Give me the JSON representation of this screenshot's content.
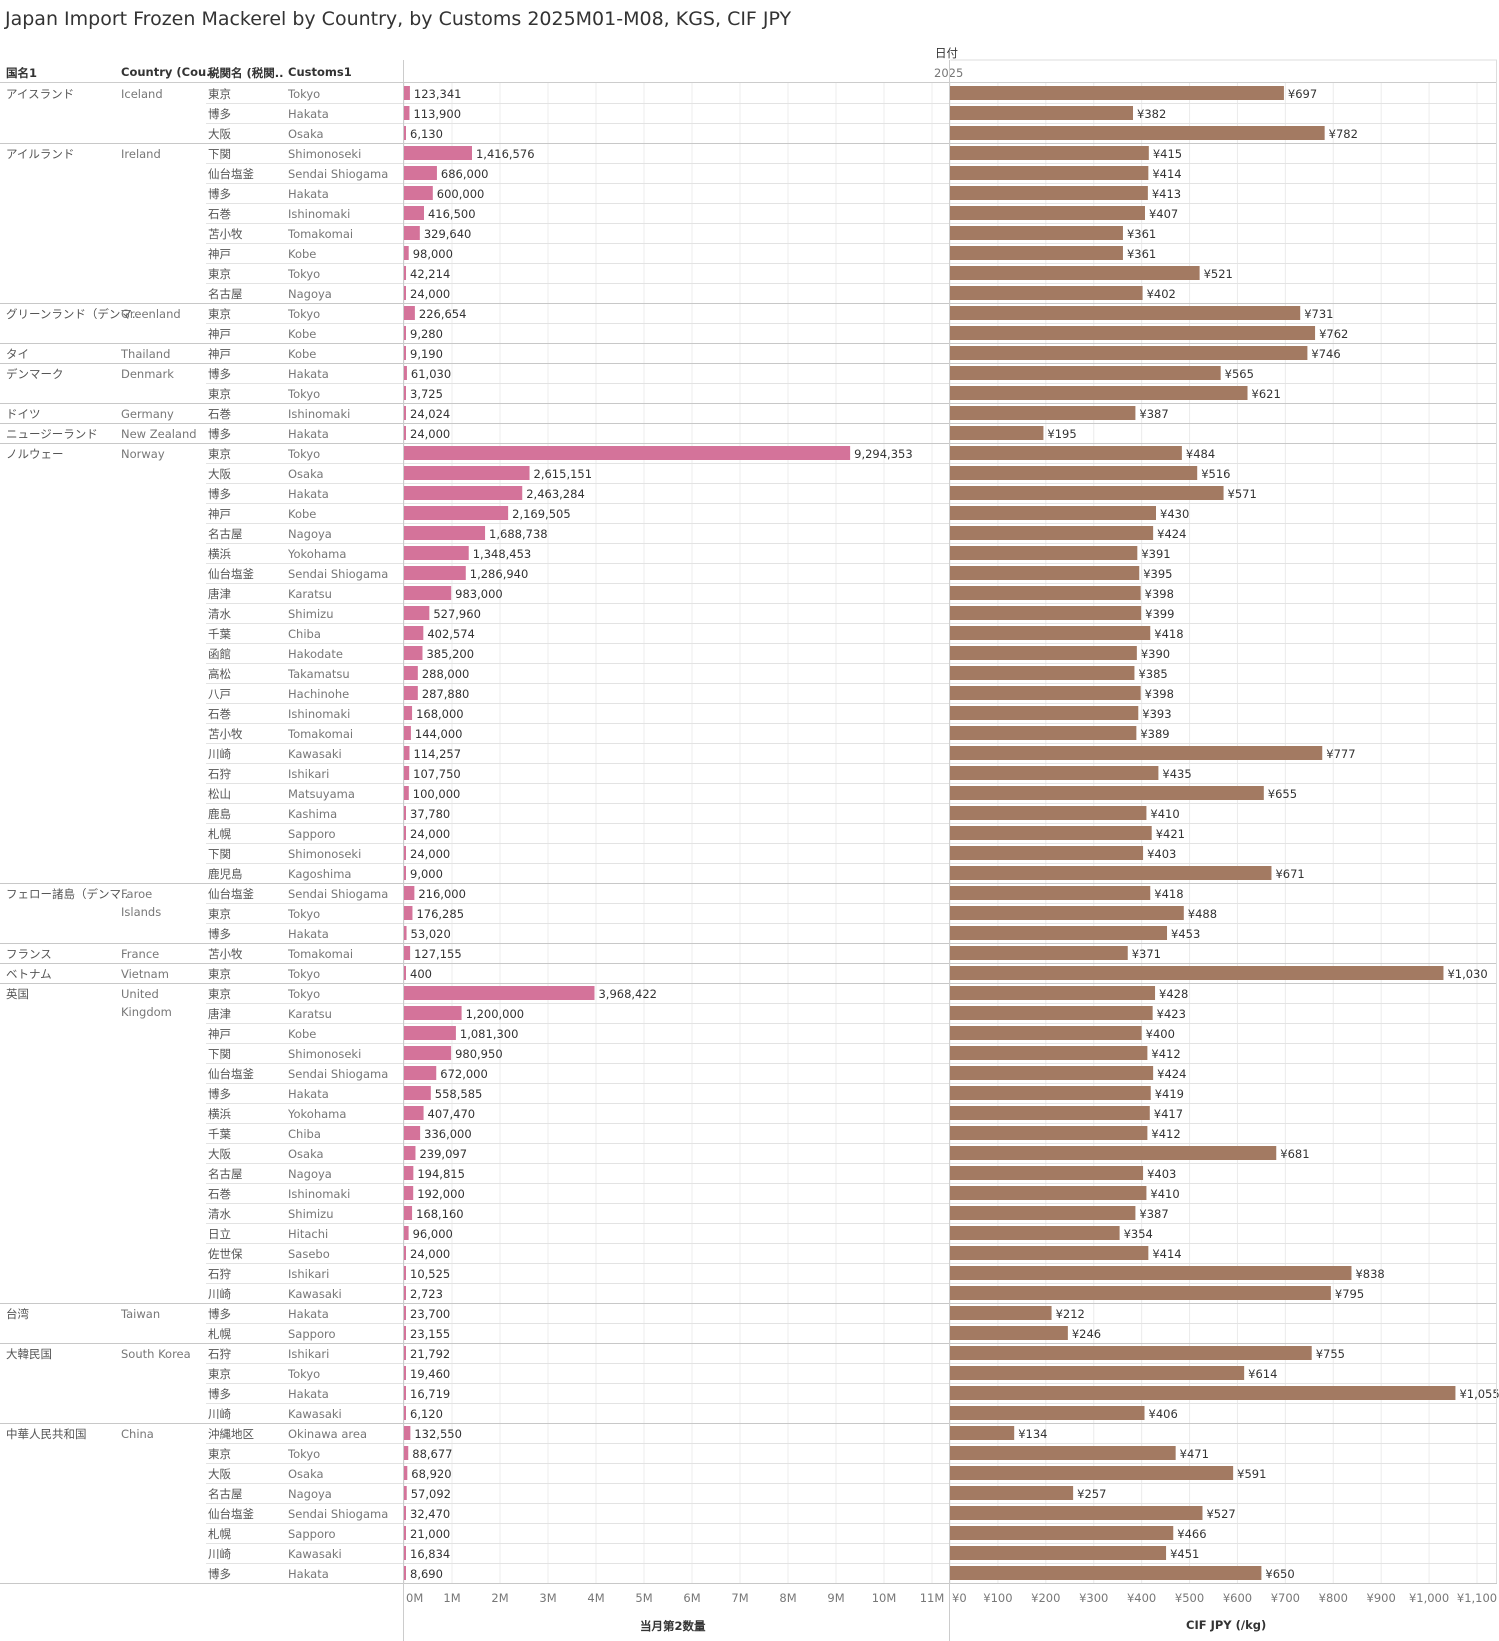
{
  "title": "Japan Import Frozen Mackerel by Country, by Customs 2025M01-M08, KGS, CIF JPY",
  "headers": {
    "col1": "国名1",
    "col2": "Country (Cou..",
    "col3": "税関名 (税関..",
    "col4": "Customs1"
  },
  "column_group": {
    "title": "日付",
    "year": "2025"
  },
  "chart_data": {
    "type": "table",
    "measures": [
      {
        "name": "当月第2数量",
        "axis_ticks": [
          "0M",
          "1M",
          "2M",
          "3M",
          "4M",
          "5M",
          "6M",
          "7M",
          "8M",
          "9M",
          "10M",
          "11M"
        ],
        "axis_max": 11000000,
        "color": "#d4739a"
      },
      {
        "name": "CIF JPY (/kg)",
        "axis_ticks": [
          "¥0",
          "¥100",
          "¥200",
          "¥300",
          "¥400",
          "¥500",
          "¥600",
          "¥700",
          "¥800",
          "¥900",
          "¥1,000",
          "¥1,100"
        ],
        "axis_max": 1100,
        "color": "#a37a62"
      }
    ],
    "groups": [
      {
        "country_jp": "アイスランド",
        "country_en": "Iceland",
        "rows": [
          [
            "東京",
            "Tokyo",
            123341,
            "123,341",
            697
          ],
          [
            "博多",
            "Hakata",
            113900,
            "113,900",
            382
          ],
          [
            "大阪",
            "Osaka",
            6130,
            "6,130",
            782
          ]
        ]
      },
      {
        "country_jp": "アイルランド",
        "country_en": "Ireland",
        "rows": [
          [
            "下関",
            "Shimonoseki",
            1416576,
            "1,416,576",
            415
          ],
          [
            "仙台塩釜",
            "Sendai Shiogama",
            686000,
            "686,000",
            414
          ],
          [
            "博多",
            "Hakata",
            600000,
            "600,000",
            413
          ],
          [
            "石巻",
            "Ishinomaki",
            416500,
            "416,500",
            407
          ],
          [
            "苫小牧",
            "Tomakomai",
            329640,
            "329,640",
            361
          ],
          [
            "神戸",
            "Kobe",
            98000,
            "98,000",
            361
          ],
          [
            "東京",
            "Tokyo",
            42214,
            "42,214",
            521
          ],
          [
            "名古屋",
            "Nagoya",
            24000,
            "24,000",
            402
          ]
        ]
      },
      {
        "country_jp": "グリーンランド（デンマ..",
        "country_en": "Greenland",
        "rows": [
          [
            "東京",
            "Tokyo",
            226654,
            "226,654",
            731
          ],
          [
            "神戸",
            "Kobe",
            9280,
            "9,280",
            762
          ]
        ]
      },
      {
        "country_jp": "タイ",
        "country_en": "Thailand",
        "rows": [
          [
            "神戸",
            "Kobe",
            9190,
            "9,190",
            746
          ]
        ]
      },
      {
        "country_jp": "デンマーク",
        "country_en": "Denmark",
        "rows": [
          [
            "博多",
            "Hakata",
            61030,
            "61,030",
            565
          ],
          [
            "東京",
            "Tokyo",
            3725,
            "3,725",
            621
          ]
        ]
      },
      {
        "country_jp": "ドイツ",
        "country_en": "Germany",
        "rows": [
          [
            "石巻",
            "Ishinomaki",
            24024,
            "24,024",
            387
          ]
        ]
      },
      {
        "country_jp": "ニュージーランド",
        "country_en": "New Zealand",
        "rows": [
          [
            "博多",
            "Hakata",
            24000,
            "24,000",
            195
          ]
        ]
      },
      {
        "country_jp": "ノルウェー",
        "country_en": "Norway",
        "rows": [
          [
            "東京",
            "Tokyo",
            9294353,
            "9,294,353",
            484
          ],
          [
            "大阪",
            "Osaka",
            2615151,
            "2,615,151",
            516
          ],
          [
            "博多",
            "Hakata",
            2463284,
            "2,463,284",
            571
          ],
          [
            "神戸",
            "Kobe",
            2169505,
            "2,169,505",
            430
          ],
          [
            "名古屋",
            "Nagoya",
            1688738,
            "1,688,738",
            424
          ],
          [
            "横浜",
            "Yokohama",
            1348453,
            "1,348,453",
            391
          ],
          [
            "仙台塩釜",
            "Sendai Shiogama",
            1286940,
            "1,286,940",
            395
          ],
          [
            "唐津",
            "Karatsu",
            983000,
            "983,000",
            398
          ],
          [
            "清水",
            "Shimizu",
            527960,
            "527,960",
            399
          ],
          [
            "千葉",
            "Chiba",
            402574,
            "402,574",
            418
          ],
          [
            "函館",
            "Hakodate",
            385200,
            "385,200",
            390
          ],
          [
            "高松",
            "Takamatsu",
            288000,
            "288,000",
            385
          ],
          [
            "八戸",
            "Hachinohe",
            287880,
            "287,880",
            398
          ],
          [
            "石巻",
            "Ishinomaki",
            168000,
            "168,000",
            393
          ],
          [
            "苫小牧",
            "Tomakomai",
            144000,
            "144,000",
            389
          ],
          [
            "川崎",
            "Kawasaki",
            114257,
            "114,257",
            777
          ],
          [
            "石狩",
            "Ishikari",
            107750,
            "107,750",
            435
          ],
          [
            "松山",
            "Matsuyama",
            100000,
            "100,000",
            655
          ],
          [
            "鹿島",
            "Kashima",
            37780,
            "37,780",
            410
          ],
          [
            "札幌",
            "Sapporo",
            24000,
            "24,000",
            421
          ],
          [
            "下関",
            "Shimonoseki",
            24000,
            "24,000",
            403
          ],
          [
            "鹿児島",
            "Kagoshima",
            9000,
            "9,000",
            671
          ]
        ]
      },
      {
        "country_jp": "フェロー諸島（デンマ..",
        "country_en": "Faroe Islands",
        "rows": [
          [
            "仙台塩釜",
            "Sendai Shiogama",
            216000,
            "216,000",
            418
          ],
          [
            "東京",
            "Tokyo",
            176285,
            "176,285",
            488
          ],
          [
            "博多",
            "Hakata",
            53020,
            "53,020",
            453
          ]
        ]
      },
      {
        "country_jp": "フランス",
        "country_en": "France",
        "rows": [
          [
            "苫小牧",
            "Tomakomai",
            127155,
            "127,155",
            371
          ]
        ]
      },
      {
        "country_jp": "ベトナム",
        "country_en": "Vietnam",
        "rows": [
          [
            "東京",
            "Tokyo",
            400,
            "400",
            1030
          ]
        ]
      },
      {
        "country_jp": "英国",
        "country_en": "United Kingdom",
        "rows": [
          [
            "東京",
            "Tokyo",
            3968422,
            "3,968,422",
            428
          ],
          [
            "唐津",
            "Karatsu",
            1200000,
            "1,200,000",
            423
          ],
          [
            "神戸",
            "Kobe",
            1081300,
            "1,081,300",
            400
          ],
          [
            "下関",
            "Shimonoseki",
            980950,
            "980,950",
            412
          ],
          [
            "仙台塩釜",
            "Sendai Shiogama",
            672000,
            "672,000",
            424
          ],
          [
            "博多",
            "Hakata",
            558585,
            "558,585",
            419
          ],
          [
            "横浜",
            "Yokohama",
            407470,
            "407,470",
            417
          ],
          [
            "千葉",
            "Chiba",
            336000,
            "336,000",
            412
          ],
          [
            "大阪",
            "Osaka",
            239097,
            "239,097",
            681
          ],
          [
            "名古屋",
            "Nagoya",
            194815,
            "194,815",
            403
          ],
          [
            "石巻",
            "Ishinomaki",
            192000,
            "192,000",
            410
          ],
          [
            "清水",
            "Shimizu",
            168160,
            "168,160",
            387
          ],
          [
            "日立",
            "Hitachi",
            96000,
            "96,000",
            354
          ],
          [
            "佐世保",
            "Sasebo",
            24000,
            "24,000",
            414
          ],
          [
            "石狩",
            "Ishikari",
            10525,
            "10,525",
            838
          ],
          [
            "川崎",
            "Kawasaki",
            2723,
            "2,723",
            795
          ]
        ]
      },
      {
        "country_jp": "台湾",
        "country_en": "Taiwan",
        "rows": [
          [
            "博多",
            "Hakata",
            23700,
            "23,700",
            212
          ],
          [
            "札幌",
            "Sapporo",
            23155,
            "23,155",
            246
          ]
        ]
      },
      {
        "country_jp": "大韓民国",
        "country_en": "South Korea",
        "rows": [
          [
            "石狩",
            "Ishikari",
            21792,
            "21,792",
            755
          ],
          [
            "東京",
            "Tokyo",
            19460,
            "19,460",
            614
          ],
          [
            "博多",
            "Hakata",
            16719,
            "16,719",
            1055
          ],
          [
            "川崎",
            "Kawasaki",
            6120,
            "6,120",
            406
          ]
        ]
      },
      {
        "country_jp": "中華人民共和国",
        "country_en": "China",
        "rows": [
          [
            "沖縄地区",
            "Okinawa area",
            132550,
            "132,550",
            134
          ],
          [
            "東京",
            "Tokyo",
            88677,
            "88,677",
            471
          ],
          [
            "大阪",
            "Osaka",
            68920,
            "68,920",
            591
          ],
          [
            "名古屋",
            "Nagoya",
            57092,
            "57,092",
            257
          ],
          [
            "仙台塩釜",
            "Sendai Shiogama",
            32470,
            "32,470",
            527
          ],
          [
            "札幌",
            "Sapporo",
            21000,
            "21,000",
            466
          ],
          [
            "川崎",
            "Kawasaki",
            16834,
            "16,834",
            451
          ],
          [
            "博多",
            "Hakata",
            8690,
            "8,690",
            650
          ]
        ]
      }
    ]
  }
}
